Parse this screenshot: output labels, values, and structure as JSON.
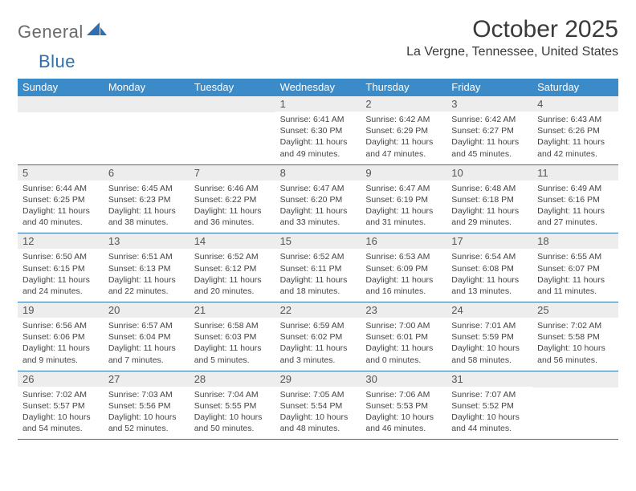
{
  "logo": {
    "word1": "General",
    "word2": "Blue"
  },
  "title": "October 2025",
  "location": "La Vergne, Tennessee, United States",
  "colors": {
    "header_bg": "#3b8bc8",
    "header_text": "#ffffff",
    "daynum_bg": "#ededed",
    "border": "#2f6fb0",
    "logo_gray": "#6b6b6b",
    "logo_blue": "#2f6fb0",
    "body_text": "#444444"
  },
  "day_headers": [
    "Sunday",
    "Monday",
    "Tuesday",
    "Wednesday",
    "Thursday",
    "Friday",
    "Saturday"
  ],
  "weeks": [
    [
      {
        "n": "",
        "sr": "",
        "ss": "",
        "dl": ""
      },
      {
        "n": "",
        "sr": "",
        "ss": "",
        "dl": ""
      },
      {
        "n": "",
        "sr": "",
        "ss": "",
        "dl": ""
      },
      {
        "n": "1",
        "sr": "Sunrise: 6:41 AM",
        "ss": "Sunset: 6:30 PM",
        "dl": "Daylight: 11 hours and 49 minutes."
      },
      {
        "n": "2",
        "sr": "Sunrise: 6:42 AM",
        "ss": "Sunset: 6:29 PM",
        "dl": "Daylight: 11 hours and 47 minutes."
      },
      {
        "n": "3",
        "sr": "Sunrise: 6:42 AM",
        "ss": "Sunset: 6:27 PM",
        "dl": "Daylight: 11 hours and 45 minutes."
      },
      {
        "n": "4",
        "sr": "Sunrise: 6:43 AM",
        "ss": "Sunset: 6:26 PM",
        "dl": "Daylight: 11 hours and 42 minutes."
      }
    ],
    [
      {
        "n": "5",
        "sr": "Sunrise: 6:44 AM",
        "ss": "Sunset: 6:25 PM",
        "dl": "Daylight: 11 hours and 40 minutes."
      },
      {
        "n": "6",
        "sr": "Sunrise: 6:45 AM",
        "ss": "Sunset: 6:23 PM",
        "dl": "Daylight: 11 hours and 38 minutes."
      },
      {
        "n": "7",
        "sr": "Sunrise: 6:46 AM",
        "ss": "Sunset: 6:22 PM",
        "dl": "Daylight: 11 hours and 36 minutes."
      },
      {
        "n": "8",
        "sr": "Sunrise: 6:47 AM",
        "ss": "Sunset: 6:20 PM",
        "dl": "Daylight: 11 hours and 33 minutes."
      },
      {
        "n": "9",
        "sr": "Sunrise: 6:47 AM",
        "ss": "Sunset: 6:19 PM",
        "dl": "Daylight: 11 hours and 31 minutes."
      },
      {
        "n": "10",
        "sr": "Sunrise: 6:48 AM",
        "ss": "Sunset: 6:18 PM",
        "dl": "Daylight: 11 hours and 29 minutes."
      },
      {
        "n": "11",
        "sr": "Sunrise: 6:49 AM",
        "ss": "Sunset: 6:16 PM",
        "dl": "Daylight: 11 hours and 27 minutes."
      }
    ],
    [
      {
        "n": "12",
        "sr": "Sunrise: 6:50 AM",
        "ss": "Sunset: 6:15 PM",
        "dl": "Daylight: 11 hours and 24 minutes."
      },
      {
        "n": "13",
        "sr": "Sunrise: 6:51 AM",
        "ss": "Sunset: 6:13 PM",
        "dl": "Daylight: 11 hours and 22 minutes."
      },
      {
        "n": "14",
        "sr": "Sunrise: 6:52 AM",
        "ss": "Sunset: 6:12 PM",
        "dl": "Daylight: 11 hours and 20 minutes."
      },
      {
        "n": "15",
        "sr": "Sunrise: 6:52 AM",
        "ss": "Sunset: 6:11 PM",
        "dl": "Daylight: 11 hours and 18 minutes."
      },
      {
        "n": "16",
        "sr": "Sunrise: 6:53 AM",
        "ss": "Sunset: 6:09 PM",
        "dl": "Daylight: 11 hours and 16 minutes."
      },
      {
        "n": "17",
        "sr": "Sunrise: 6:54 AM",
        "ss": "Sunset: 6:08 PM",
        "dl": "Daylight: 11 hours and 13 minutes."
      },
      {
        "n": "18",
        "sr": "Sunrise: 6:55 AM",
        "ss": "Sunset: 6:07 PM",
        "dl": "Daylight: 11 hours and 11 minutes."
      }
    ],
    [
      {
        "n": "19",
        "sr": "Sunrise: 6:56 AM",
        "ss": "Sunset: 6:06 PM",
        "dl": "Daylight: 11 hours and 9 minutes."
      },
      {
        "n": "20",
        "sr": "Sunrise: 6:57 AM",
        "ss": "Sunset: 6:04 PM",
        "dl": "Daylight: 11 hours and 7 minutes."
      },
      {
        "n": "21",
        "sr": "Sunrise: 6:58 AM",
        "ss": "Sunset: 6:03 PM",
        "dl": "Daylight: 11 hours and 5 minutes."
      },
      {
        "n": "22",
        "sr": "Sunrise: 6:59 AM",
        "ss": "Sunset: 6:02 PM",
        "dl": "Daylight: 11 hours and 3 minutes."
      },
      {
        "n": "23",
        "sr": "Sunrise: 7:00 AM",
        "ss": "Sunset: 6:01 PM",
        "dl": "Daylight: 11 hours and 0 minutes."
      },
      {
        "n": "24",
        "sr": "Sunrise: 7:01 AM",
        "ss": "Sunset: 5:59 PM",
        "dl": "Daylight: 10 hours and 58 minutes."
      },
      {
        "n": "25",
        "sr": "Sunrise: 7:02 AM",
        "ss": "Sunset: 5:58 PM",
        "dl": "Daylight: 10 hours and 56 minutes."
      }
    ],
    [
      {
        "n": "26",
        "sr": "Sunrise: 7:02 AM",
        "ss": "Sunset: 5:57 PM",
        "dl": "Daylight: 10 hours and 54 minutes."
      },
      {
        "n": "27",
        "sr": "Sunrise: 7:03 AM",
        "ss": "Sunset: 5:56 PM",
        "dl": "Daylight: 10 hours and 52 minutes."
      },
      {
        "n": "28",
        "sr": "Sunrise: 7:04 AM",
        "ss": "Sunset: 5:55 PM",
        "dl": "Daylight: 10 hours and 50 minutes."
      },
      {
        "n": "29",
        "sr": "Sunrise: 7:05 AM",
        "ss": "Sunset: 5:54 PM",
        "dl": "Daylight: 10 hours and 48 minutes."
      },
      {
        "n": "30",
        "sr": "Sunrise: 7:06 AM",
        "ss": "Sunset: 5:53 PM",
        "dl": "Daylight: 10 hours and 46 minutes."
      },
      {
        "n": "31",
        "sr": "Sunrise: 7:07 AM",
        "ss": "Sunset: 5:52 PM",
        "dl": "Daylight: 10 hours and 44 minutes."
      },
      {
        "n": "",
        "sr": "",
        "ss": "",
        "dl": ""
      }
    ]
  ]
}
